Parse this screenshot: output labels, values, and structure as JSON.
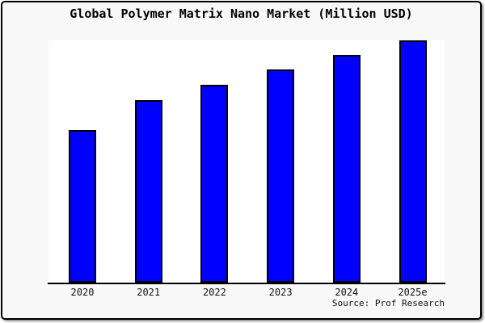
{
  "window": {
    "title": "Global Polymer Matrix Nano Market (Million USD)"
  },
  "source_note": "Source: Prof Research",
  "colors": {
    "page_background": "#f8f8f8",
    "plot_background": "#ffffff",
    "bar_fill": "#0000ff",
    "bar_border": "#000000",
    "axis": "#000000",
    "text": "#000000",
    "frame_border": "#000000"
  },
  "chart_data": {
    "type": "bar",
    "title": "Global Polymer Matrix Nano Market (Million USD)",
    "categories": [
      "2020",
      "2021",
      "2022",
      "2023",
      "2024",
      "2025e"
    ],
    "values": [
      63,
      75.3,
      81.7,
      88,
      94,
      100
    ],
    "value_scale_note": "No y-axis ticks or gridlines are shown; values are relative bar heights with the tallest bar (2025e) = 100",
    "xlabel": "",
    "ylabel": "",
    "ylim": [
      0,
      100
    ],
    "grid": false,
    "legend": false,
    "y_axis_visible": false,
    "x_axis_visible": true,
    "source": "Source: Prof Research"
  }
}
